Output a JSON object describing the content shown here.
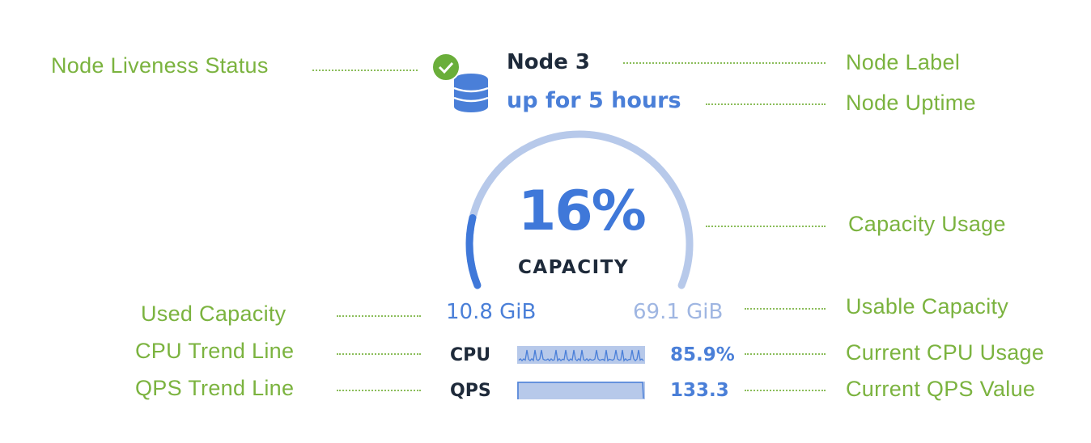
{
  "node": {
    "label": "Node 3",
    "uptime": "up for 5 hours",
    "liveness_icon": "check-circle-icon",
    "node_icon": "database-icon",
    "capacity_percent_text": "16%",
    "capacity_percent": 16,
    "capacity_label": "CAPACITY",
    "used_capacity": "10.8 GiB",
    "usable_capacity": "69.1 GiB",
    "cpu_label": "CPU",
    "cpu_value": "85.9%",
    "qps_label": "QPS",
    "qps_value": "133.3"
  },
  "annotations": {
    "liveness": "Node Liveness Status",
    "label": "Node Label",
    "uptime": "Node Uptime",
    "capacity": "Capacity Usage",
    "used": "Used Capacity",
    "usable": "Usable Capacity",
    "cpu_trend": "CPU Trend Line",
    "cpu_current": "Current CPU Usage",
    "qps_trend": "QPS Trend Line",
    "qps_current": "Current QPS Value"
  },
  "colors": {
    "accent": "#4a7fd8",
    "arc_track": "#b7c9ea",
    "annotation": "#7bb33f",
    "status_ok": "#6aae3a"
  }
}
